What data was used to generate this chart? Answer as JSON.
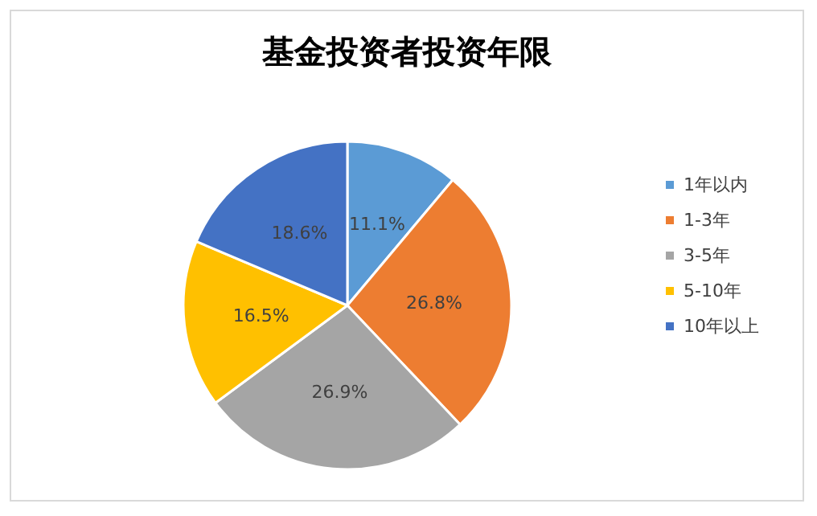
{
  "chart_data": {
    "type": "pie",
    "title": "基金投资者投资年限",
    "categories": [
      "1年以内",
      "1-3年",
      "3-5年",
      "5-10年",
      "10年以上"
    ],
    "values": [
      11.1,
      26.8,
      26.9,
      16.5,
      18.6
    ],
    "value_labels": [
      "11.1%",
      "26.8%",
      "26.9%",
      "16.5%",
      "18.6%"
    ],
    "colors": [
      "#5b9bd5",
      "#ed7d31",
      "#a5a5a5",
      "#ffc000",
      "#4472c4"
    ],
    "legend": "right"
  }
}
